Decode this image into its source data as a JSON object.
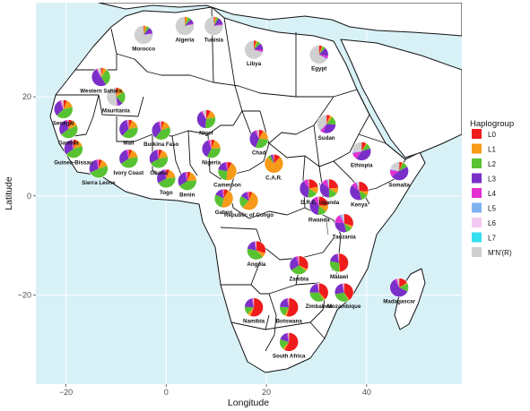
{
  "title": "",
  "xlabel": "Longitude",
  "ylabel": "Latitude",
  "x_ticks": [
    -20,
    0,
    20,
    40
  ],
  "y_ticks": [
    20,
    0,
    -20
  ],
  "xlim": [
    -26,
    59
  ],
  "ylim": [
    -38,
    39
  ],
  "colors": {
    "ocean": "#d8f1f7",
    "land": "#ffffff",
    "border": "#111111",
    "grid": "#ffffff"
  },
  "legend": {
    "title": "Haplogroup",
    "items": [
      {
        "label": "L0",
        "color": "#ee1c1c"
      },
      {
        "label": "L1",
        "color": "#f79a18"
      },
      {
        "label": "L2",
        "color": "#58c232"
      },
      {
        "label": "L3",
        "color": "#7a2fc9"
      },
      {
        "label": "L4",
        "color": "#e42fd0"
      },
      {
        "label": "L5",
        "color": "#7fb3f0"
      },
      {
        "label": "L6",
        "color": "#f3c9f1"
      },
      {
        "label": "L7",
        "color": "#34dff0"
      },
      {
        "label": "M'N'(R)",
        "color": "#cfcfcf"
      }
    ]
  },
  "chart_data": {
    "type": "pie-map",
    "haplogroups": [
      "L0",
      "L1",
      "L2",
      "L3",
      "L4",
      "L5",
      "L6",
      "L7",
      "M'N'(R)"
    ],
    "countries": [
      {
        "name": "Morocco",
        "lon": -4.5,
        "lat": 32.5,
        "shares": [
          2,
          4,
          5,
          10,
          2,
          1,
          0,
          0,
          76
        ]
      },
      {
        "name": "Algeria",
        "lon": 3.7,
        "lat": 34.3,
        "shares": [
          1,
          5,
          6,
          8,
          2,
          0,
          0,
          0,
          78
        ]
      },
      {
        "name": "Tunisia",
        "lon": 9.5,
        "lat": 34.3,
        "shares": [
          2,
          3,
          4,
          12,
          2,
          1,
          0,
          0,
          76
        ]
      },
      {
        "name": "Libya",
        "lon": 17.5,
        "lat": 29.5,
        "shares": [
          4,
          3,
          6,
          12,
          4,
          1,
          0,
          0,
          70
        ]
      },
      {
        "name": "Egypt",
        "lon": 30.5,
        "lat": 28.5,
        "shares": [
          5,
          2,
          5,
          15,
          5,
          2,
          1,
          0,
          65
        ]
      },
      {
        "name": "Western Sahara",
        "lon": -13,
        "lat": 24,
        "shares": [
          3,
          8,
          30,
          50,
          2,
          0,
          0,
          0,
          7
        ]
      },
      {
        "name": "Mauritania",
        "lon": -10,
        "lat": 20,
        "shares": [
          4,
          12,
          22,
          8,
          2,
          0,
          0,
          0,
          52
        ]
      },
      {
        "name": "Senegal",
        "lon": -20.5,
        "lat": 17.5,
        "shares": [
          6,
          15,
          42,
          30,
          3,
          0,
          0,
          0,
          4
        ]
      },
      {
        "name": "Gambia",
        "lon": -19.5,
        "lat": 13.5,
        "shares": [
          7,
          12,
          46,
          30,
          3,
          0,
          0,
          0,
          2
        ]
      },
      {
        "name": "Guinea-Bissau",
        "lon": -18.5,
        "lat": 9.5,
        "shares": [
          6,
          14,
          45,
          30,
          3,
          0,
          0,
          0,
          2
        ]
      },
      {
        "name": "Mali",
        "lon": -7.5,
        "lat": 13.5,
        "shares": [
          6,
          16,
          40,
          34,
          2,
          0,
          0,
          0,
          2
        ]
      },
      {
        "name": "Burkina Faso",
        "lon": -1,
        "lat": 13.2,
        "shares": [
          5,
          14,
          42,
          34,
          3,
          0,
          0,
          0,
          2
        ]
      },
      {
        "name": "Niger",
        "lon": 8,
        "lat": 15.5,
        "shares": [
          8,
          14,
          30,
          38,
          3,
          0,
          0,
          0,
          7
        ]
      },
      {
        "name": "Nigeria",
        "lon": 9,
        "lat": 9.5,
        "shares": [
          6,
          18,
          34,
          36,
          4,
          0,
          0,
          0,
          2
        ]
      },
      {
        "name": "Chad",
        "lon": 18.5,
        "lat": 11.5,
        "shares": [
          8,
          18,
          30,
          36,
          4,
          0,
          0,
          0,
          4
        ]
      },
      {
        "name": "Sudan",
        "lon": 32,
        "lat": 14.5,
        "shares": [
          6,
          5,
          15,
          30,
          6,
          1,
          0,
          0,
          37
        ]
      },
      {
        "name": "Ethiopia",
        "lon": 39,
        "lat": 9,
        "shares": [
          8,
          2,
          10,
          40,
          12,
          2,
          2,
          0,
          24
        ]
      },
      {
        "name": "Somalia",
        "lon": 46.5,
        "lat": 5,
        "shares": [
          5,
          2,
          10,
          48,
          12,
          2,
          2,
          0,
          19
        ]
      },
      {
        "name": "Sierra Leone",
        "lon": -13.5,
        "lat": 5.5,
        "shares": [
          6,
          14,
          48,
          28,
          3,
          0,
          0,
          0,
          1
        ]
      },
      {
        "name": "Ivory Coast",
        "lon": -7.5,
        "lat": 7.5,
        "shares": [
          6,
          16,
          44,
          30,
          3,
          0,
          0,
          0,
          1
        ]
      },
      {
        "name": "Ghana",
        "lon": -1.5,
        "lat": 7.5,
        "shares": [
          6,
          16,
          45,
          29,
          3,
          0,
          0,
          0,
          1
        ]
      },
      {
        "name": "Togo",
        "lon": 0,
        "lat": 3.5,
        "shares": [
          6,
          17,
          44,
          29,
          3,
          0,
          0,
          0,
          1
        ]
      },
      {
        "name": "Benin",
        "lon": 4.2,
        "lat": 3,
        "shares": [
          6,
          18,
          42,
          30,
          3,
          0,
          0,
          0,
          1
        ]
      },
      {
        "name": "Cameroon",
        "lon": 12.2,
        "lat": 5,
        "shares": [
          8,
          44,
          26,
          18,
          3,
          0,
          0,
          0,
          1
        ]
      },
      {
        "name": "Gabon",
        "lon": 11.5,
        "lat": -0.5,
        "shares": [
          8,
          46,
          28,
          14,
          3,
          0,
          0,
          0,
          1
        ]
      },
      {
        "name": "Republic of Congo",
        "lon": 16.5,
        "lat": -1,
        "shares": [
          6,
          56,
          22,
          12,
          3,
          0,
          0,
          0,
          1
        ]
      },
      {
        "name": "C.A.R.",
        "lon": 21.5,
        "lat": 6.5,
        "shares": [
          12,
          76,
          6,
          4,
          1,
          0,
          0,
          0,
          1
        ]
      },
      {
        "name": "D.R.C.",
        "lon": 28.5,
        "lat": 1.5,
        "shares": [
          22,
          12,
          18,
          38,
          8,
          0,
          0,
          0,
          2
        ]
      },
      {
        "name": "Uganda",
        "lon": 32.5,
        "lat": 1.5,
        "shares": [
          24,
          10,
          16,
          36,
          10,
          2,
          0,
          0,
          2
        ]
      },
      {
        "name": "Kenya",
        "lon": 38.5,
        "lat": 1,
        "shares": [
          26,
          6,
          14,
          40,
          8,
          2,
          2,
          0,
          2
        ]
      },
      {
        "name": "Rwanda",
        "lon": 30.5,
        "lat": -2,
        "shares": [
          24,
          12,
          16,
          38,
          8,
          0,
          0,
          0,
          2
        ]
      },
      {
        "name": "Tanzania",
        "lon": 35.5,
        "lat": -5.5,
        "shares": [
          30,
          4,
          12,
          30,
          16,
          4,
          2,
          0,
          2
        ]
      },
      {
        "name": "Angola",
        "lon": 18,
        "lat": -11,
        "shares": [
          30,
          8,
          40,
          18,
          2,
          0,
          0,
          0,
          2
        ]
      },
      {
        "name": "Zambia",
        "lon": 26.5,
        "lat": -14,
        "shares": [
          32,
          4,
          30,
          28,
          4,
          0,
          0,
          0,
          2
        ]
      },
      {
        "name": "Malawi",
        "lon": 34.5,
        "lat": -13.5,
        "shares": [
          48,
          2,
          28,
          18,
          2,
          0,
          0,
          0,
          2
        ]
      },
      {
        "name": "Mozambique",
        "lon": 35.5,
        "lat": -19.5,
        "shares": [
          40,
          2,
          30,
          24,
          2,
          0,
          0,
          0,
          2
        ]
      },
      {
        "name": "Zimbabwe",
        "lon": 30.5,
        "lat": -19.5,
        "shares": [
          38,
          3,
          34,
          21,
          2,
          0,
          0,
          0,
          2
        ]
      },
      {
        "name": "Namibia",
        "lon": 17.5,
        "lat": -22.5,
        "shares": [
          56,
          6,
          14,
          20,
          2,
          0,
          0,
          0,
          2
        ]
      },
      {
        "name": "Botswana",
        "lon": 24.5,
        "lat": -22.5,
        "shares": [
          54,
          4,
          18,
          20,
          2,
          0,
          0,
          0,
          2
        ]
      },
      {
        "name": "South Africa",
        "lon": 24.5,
        "lat": -29.5,
        "shares": [
          58,
          4,
          18,
          16,
          2,
          0,
          0,
          0,
          2
        ]
      },
      {
        "name": "Madagascar",
        "lon": 46.5,
        "lat": -18.5,
        "shares": [
          16,
          2,
          14,
          60,
          4,
          0,
          0,
          0,
          4
        ]
      }
    ]
  }
}
